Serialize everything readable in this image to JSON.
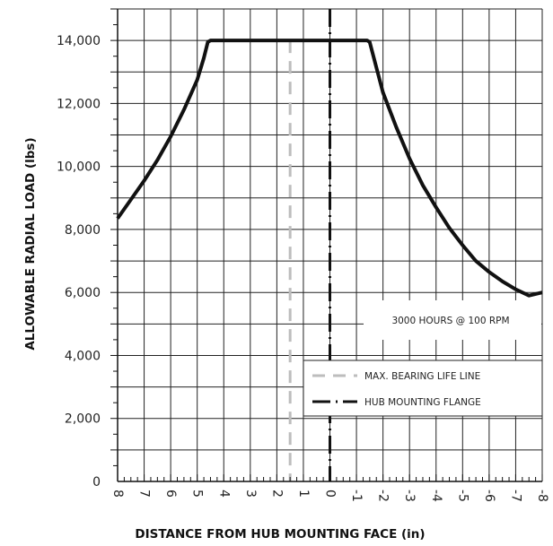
{
  "chart_data": {
    "type": "line",
    "title": "",
    "xlabel": "DISTANCE FROM HUB MOUNTING FACE (in)",
    "ylabel": "ALLOWABLE RADIAL LOAD (lbs)",
    "xlim": [
      8,
      -8
    ],
    "ylim": [
      0,
      15000
    ],
    "x_tick_values": [
      8,
      7,
      6,
      5,
      4,
      3,
      2,
      1,
      0,
      -1,
      -2,
      -3,
      -4,
      -5,
      -6,
      -7,
      -8
    ],
    "x_tick_labels": [
      "8",
      "7",
      "6",
      "5",
      "4",
      "3",
      "2",
      "1",
      "0",
      "-1",
      "-2",
      "-3",
      "-4",
      "-5",
      "-6",
      "-7",
      "-8"
    ],
    "y_tick_values": [
      0,
      2000,
      4000,
      6000,
      8000,
      10000,
      12000,
      14000
    ],
    "y_tick_labels": [
      "0",
      "2,000",
      "4,000",
      "6,000",
      "8,000",
      "10,000",
      "12,000",
      "14,000"
    ],
    "grid": true,
    "annotation": "3000 HOURS @ 100 RPM",
    "legend_position": "lower-right",
    "series": [
      {
        "x": [
          8,
          7.5,
          7,
          6.5,
          6,
          5.5,
          5,
          4.75,
          4.6,
          4.5,
          4,
          3,
          2,
          1,
          0,
          -1,
          -1.4,
          -1.5,
          -1.7,
          -2,
          -2.5,
          -3,
          -3.5,
          -4,
          -4.5,
          -5,
          -5.5,
          -6,
          -6.5,
          -7,
          -7.5,
          -8
        ],
        "y": [
          8350,
          8950,
          9550,
          10200,
          10950,
          11800,
          12750,
          13450,
          13950,
          14000,
          14000,
          14000,
          14000,
          14000,
          14000,
          14000,
          14000,
          13950,
          13300,
          12350,
          11250,
          10250,
          9400,
          8700,
          8050,
          7500,
          7000,
          6650,
          6350,
          6100,
          5900,
          6000
        ]
      }
    ],
    "reference_lines": [
      {
        "x": 1.5,
        "label": "MAX. BEARING LIFE LINE",
        "color": "#bdbdbd"
      },
      {
        "x": 0,
        "label": "HUB MOUNTING FLANGE",
        "color": "#111111"
      }
    ]
  }
}
